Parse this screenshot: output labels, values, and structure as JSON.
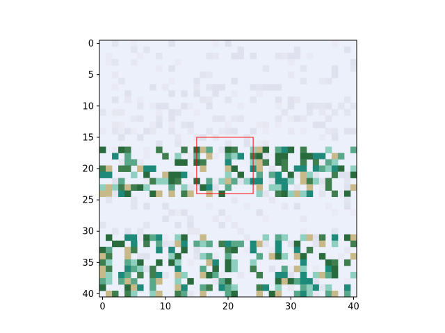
{
  "chart_data": {
    "type": "heatmap",
    "title": "",
    "xlabel": "",
    "ylabel": "",
    "xlim": [
      -0.5,
      40.5
    ],
    "ylim": [
      40.5,
      -0.5
    ],
    "x_ticks": [
      0,
      10,
      20,
      30,
      40
    ],
    "y_ticks": [
      0,
      5,
      10,
      15,
      20,
      25,
      30,
      35,
      40
    ],
    "x_tick_labels": [
      "0",
      "10",
      "20",
      "30",
      "40"
    ],
    "y_tick_labels": [
      "0",
      "5",
      "10",
      "15",
      "20",
      "25",
      "30",
      "35",
      "40"
    ],
    "grid": false,
    "image_description": "zoomed pixelated crop of scanned text in teal and green letters on a pale lavender background",
    "rectangle": {
      "x": [
        15,
        24
      ],
      "y": [
        15,
        24
      ],
      "color": "#ff0000"
    },
    "colors": {
      "background": "#ecf0fb",
      "text_dark": "#2a6b3e",
      "text_teal": "#1f8a7a",
      "text_light": "#8fcfc0",
      "noise_tan": "#c8b98a",
      "highlight": "#ff0000"
    }
  }
}
